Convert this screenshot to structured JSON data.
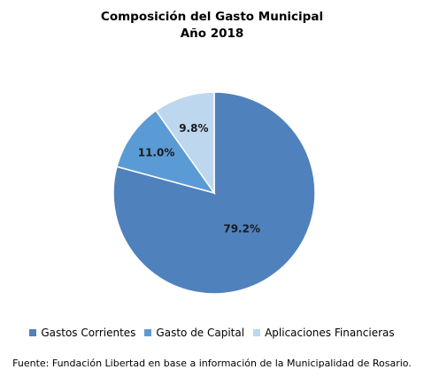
{
  "chart_data": {
    "type": "pie",
    "title": "Composición del Gasto Municipal",
    "subtitle": "Año 2018",
    "categories": [
      "Gastos Corrientes",
      "Gasto de Capital",
      "Aplicaciones Financieras"
    ],
    "values": [
      79.2,
      11.0,
      9.8
    ],
    "data_labels": [
      "79.2%",
      "11.0%",
      "9.8%"
    ],
    "colors": [
      "#4f81bd",
      "#5b9bd5",
      "#bdd7ee"
    ],
    "legend_position": "bottom",
    "source": "Fuente: Fundación Libertad en base a información de la Municipalidad de Rosario."
  }
}
